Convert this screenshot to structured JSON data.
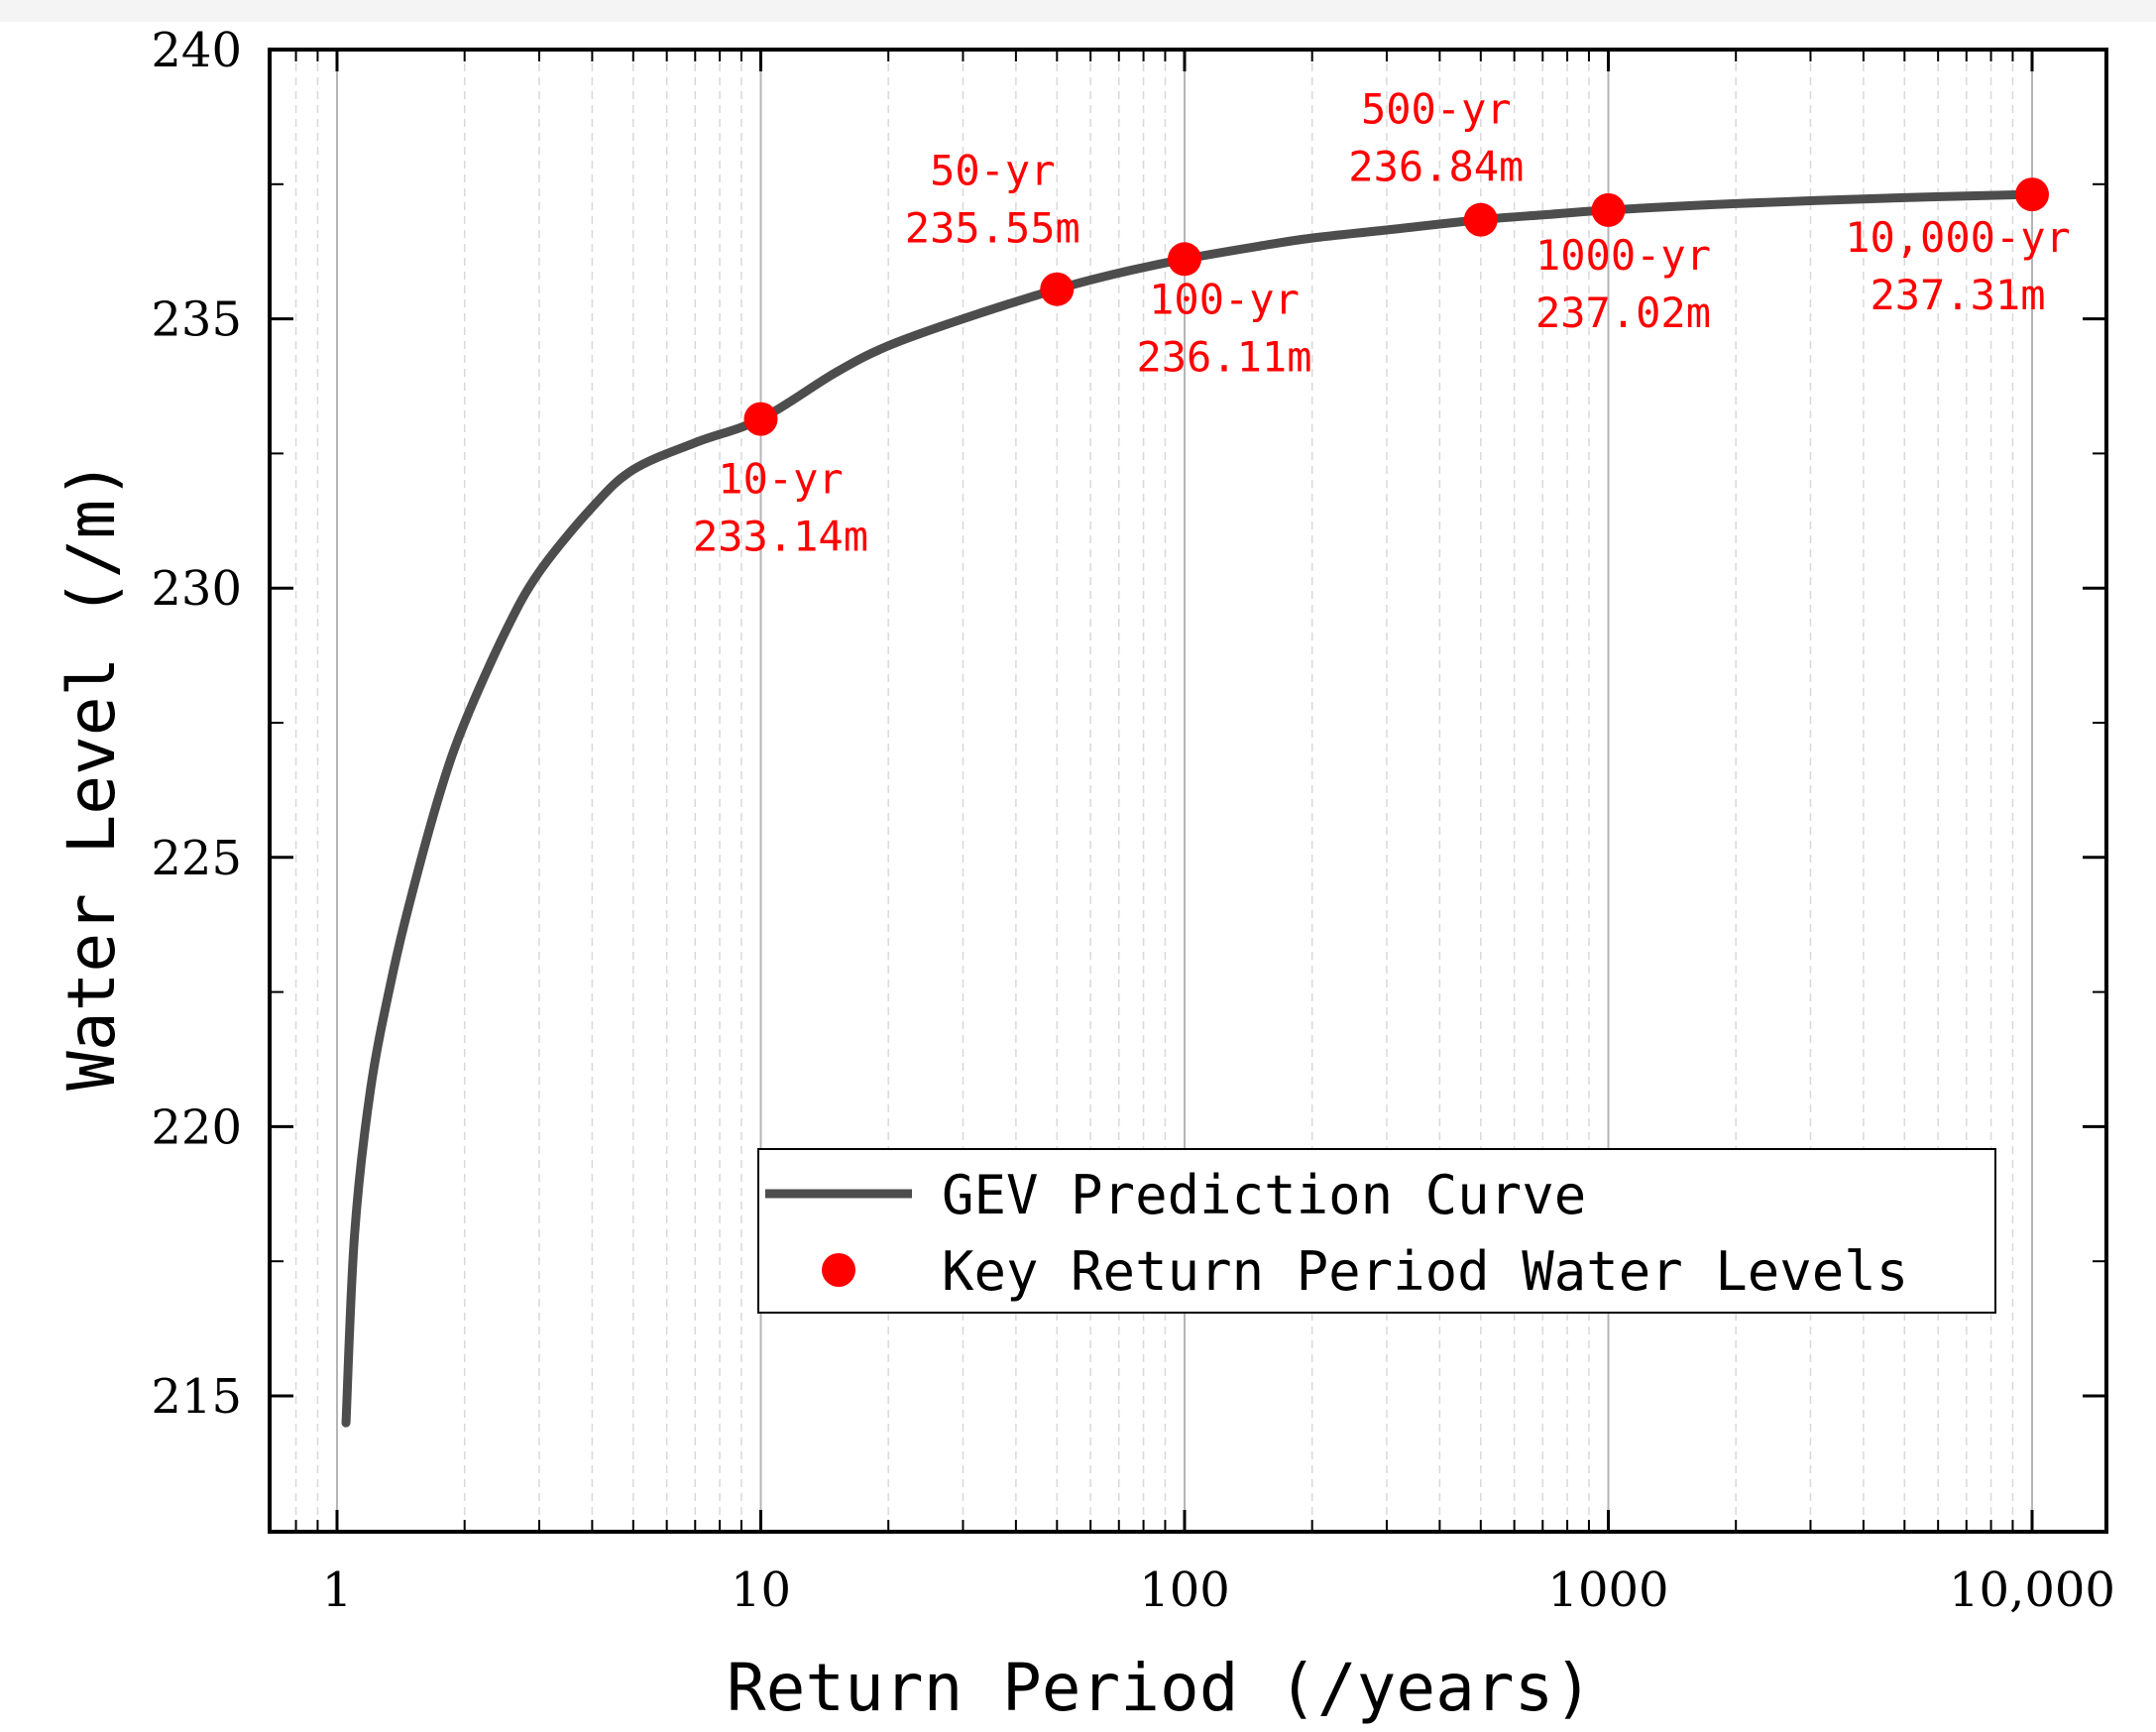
{
  "chart_data": {
    "type": "line",
    "x_scale": "log",
    "xlabel": "Return Period (/years)",
    "ylabel": "Water Level (/m)",
    "xlim": [
      0.7,
      15000
    ],
    "ylim": [
      212.5,
      240
    ],
    "x_ticks": [
      1,
      10,
      100,
      1000,
      10000
    ],
    "x_tick_labels": [
      "1",
      "10",
      "100",
      "1000",
      "10,000"
    ],
    "y_ticks": [
      215,
      220,
      225,
      230,
      235,
      240
    ],
    "y_tick_labels": [
      "215",
      "220",
      "225",
      "230",
      "235",
      "240"
    ],
    "grid": true,
    "legend_position": "bottom-right",
    "series": [
      {
        "name": "GEV Prediction Curve",
        "kind": "line",
        "color": "#4d4d4d",
        "x": [
          1.05,
          1.1,
          1.2,
          1.35,
          1.5,
          1.75,
          2,
          2.5,
          3,
          4,
          5,
          7,
          10,
          15,
          20,
          30,
          50,
          70,
          100,
          150,
          200,
          300,
          500,
          700,
          1000,
          2000,
          5000,
          10000
        ],
        "y": [
          214.5,
          218.0,
          220.7,
          222.8,
          224.3,
          226.2,
          227.5,
          229.2,
          230.3,
          231.5,
          232.2,
          232.7,
          233.14,
          234.0,
          234.5,
          235.0,
          235.55,
          235.85,
          236.11,
          236.35,
          236.5,
          236.65,
          236.84,
          236.93,
          237.02,
          237.14,
          237.25,
          237.31
        ]
      },
      {
        "name": "Key Return Period Water Levels",
        "kind": "scatter",
        "color": "#ff0000",
        "x": [
          10,
          50,
          100,
          500,
          1000,
          10000
        ],
        "y": [
          233.14,
          235.55,
          236.11,
          236.84,
          237.02,
          237.31
        ]
      }
    ],
    "annotations": [
      {
        "line1": "10-yr",
        "line2": "233.14m"
      },
      {
        "line1": "50-yr",
        "line2": "235.55m"
      },
      {
        "line1": "100-yr",
        "line2": "236.11m"
      },
      {
        "line1": "500-yr",
        "line2": "236.84m"
      },
      {
        "line1": "1000-yr",
        "line2": "237.02m"
      },
      {
        "line1": "10,000-yr",
        "line2": "237.31m"
      }
    ]
  }
}
